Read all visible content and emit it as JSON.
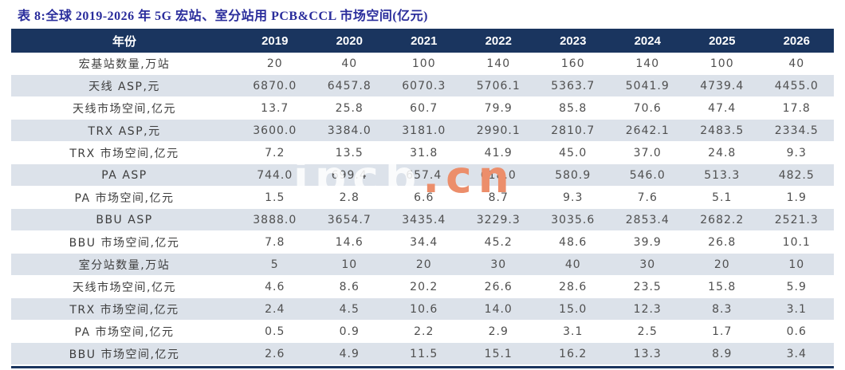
{
  "title": "表 8:全球 2019-2026 年 5G 宏站、室分站用 PCB&CCL 市场空间(亿元)",
  "watermark": {
    "light": "ipcb",
    "accent": ".cn"
  },
  "colors": {
    "header_bg": "#1a355f",
    "stripe_bg": "#dce2ea",
    "title_text": "#2a2d9c",
    "header_text": "#ffffff",
    "cell_text": "#4f4f4f",
    "watermark_accent": "#ec8e6b",
    "bottom_rule": "#1a355f"
  },
  "chart_data": {
    "type": "table",
    "title": "表 8:全球 2019-2026 年 5G 宏站、室分站用 PCB&CCL 市场空间(亿元)",
    "columns": [
      "年份",
      "2019",
      "2020",
      "2021",
      "2022",
      "2023",
      "2024",
      "2025",
      "2026"
    ],
    "rows": [
      {
        "label": "宏基站数量,万站",
        "values": [
          "20",
          "40",
          "100",
          "140",
          "160",
          "140",
          "100",
          "40"
        ]
      },
      {
        "label": "天线 ASP,元",
        "values": [
          "6870.0",
          "6457.8",
          "6070.3",
          "5706.1",
          "5363.7",
          "5041.9",
          "4739.4",
          "4455.0"
        ]
      },
      {
        "label": "天线市场空间,亿元",
        "values": [
          "13.7",
          "25.8",
          "60.7",
          "79.9",
          "85.8",
          "70.6",
          "47.4",
          "17.8"
        ]
      },
      {
        "label": "TRX ASP,元",
        "values": [
          "3600.0",
          "3384.0",
          "3181.0",
          "2990.1",
          "2810.7",
          "2642.1",
          "2483.5",
          "2334.5"
        ]
      },
      {
        "label": "TRX 市场空间,亿元",
        "values": [
          "7.2",
          "13.5",
          "31.8",
          "41.9",
          "45.0",
          "37.0",
          "24.8",
          "9.3"
        ]
      },
      {
        "label": "PA ASP",
        "values": [
          "744.0",
          "699.4",
          "657.4",
          "618.0",
          "580.9",
          "546.0",
          "513.3",
          "482.5"
        ]
      },
      {
        "label": "PA 市场空间,亿元",
        "values": [
          "1.5",
          "2.8",
          "6.6",
          "8.7",
          "9.3",
          "7.6",
          "5.1",
          "1.9"
        ]
      },
      {
        "label": "BBU ASP",
        "values": [
          "3888.0",
          "3654.7",
          "3435.4",
          "3229.3",
          "3035.6",
          "2853.4",
          "2682.2",
          "2521.3"
        ]
      },
      {
        "label": "BBU 市场空间,亿元",
        "values": [
          "7.8",
          "14.6",
          "34.4",
          "45.2",
          "48.6",
          "39.9",
          "26.8",
          "10.1"
        ]
      },
      {
        "label": "室分站数量,万站",
        "values": [
          "5",
          "10",
          "20",
          "30",
          "40",
          "30",
          "20",
          "10"
        ]
      },
      {
        "label": "天线市场空间,亿元",
        "values": [
          "4.6",
          "8.6",
          "20.2",
          "26.6",
          "28.6",
          "23.5",
          "15.8",
          "5.9"
        ]
      },
      {
        "label": "TRX 市场空间,亿元",
        "values": [
          "2.4",
          "4.5",
          "10.6",
          "14.0",
          "15.0",
          "12.3",
          "8.3",
          "3.1"
        ]
      },
      {
        "label": "PA 市场空间,亿元",
        "values": [
          "0.5",
          "0.9",
          "2.2",
          "2.9",
          "3.1",
          "2.5",
          "1.7",
          "0.6"
        ]
      },
      {
        "label": "BBU 市场空间,亿元",
        "values": [
          "2.6",
          "4.9",
          "11.5",
          "15.1",
          "16.2",
          "13.3",
          "8.9",
          "3.4"
        ]
      }
    ]
  }
}
